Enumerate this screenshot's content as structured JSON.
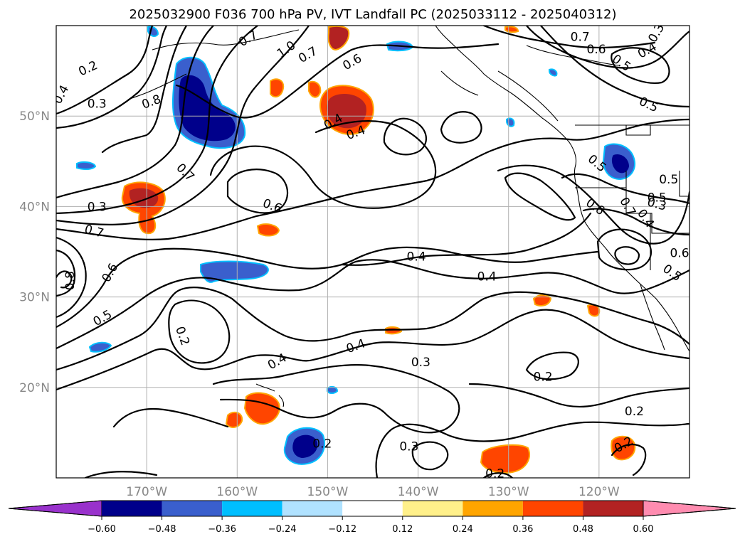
{
  "chart_data": {
    "type": "map-contour",
    "title": "2025032900 F036 700 hPa PV, IVT Landfall PC (2025033112 - 2025040312)",
    "lon_range": [
      -180,
      -110
    ],
    "lat_range": [
      10,
      60
    ],
    "lon_ticks": [
      "170°W",
      "160°W",
      "150°W",
      "140°W",
      "130°W",
      "120°W"
    ],
    "lat_ticks": [
      "50°N",
      "40°N",
      "30°N",
      "20°N"
    ],
    "grid": true,
    "colorbar": {
      "orientation": "horizontal",
      "extend": "both",
      "ticks": [
        "−0.60",
        "−0.48",
        "−0.36",
        "−0.24",
        "−0.12",
        "0.12",
        "0.24",
        "0.36",
        "0.48",
        "0.60"
      ],
      "colors": [
        "#9932cc",
        "#00008b",
        "#3a5fcd",
        "#00bfff",
        "#b0e2ff",
        "#ffffff",
        "#fff08a",
        "#ffa500",
        "#ff4500",
        "#b22222",
        "#ff8cb0"
      ]
    },
    "contour_labels": [
      {
        "text": "0.2",
        "lon": -176.5,
        "lat": 55.3,
        "rot": -25
      },
      {
        "text": "0.3",
        "lon": -175.5,
        "lat": 51.4,
        "rot": 0
      },
      {
        "text": "0.4",
        "lon": -179.5,
        "lat": 52.4,
        "rot": -62
      },
      {
        "text": "0.8",
        "lon": -169.5,
        "lat": 51.6,
        "rot": -20
      },
      {
        "text": "0.7",
        "lon": -158.8,
        "lat": 58.6,
        "rot": -30
      },
      {
        "text": "1.0",
        "lon": -154.6,
        "lat": 57.4,
        "rot": -35
      },
      {
        "text": "0.7",
        "lon": -152.2,
        "lat": 56.8,
        "rot": -30
      },
      {
        "text": "0.6",
        "lon": -147.3,
        "lat": 56.0,
        "rot": -30
      },
      {
        "text": "0.4",
        "lon": -149.4,
        "lat": 49.4,
        "rot": -30
      },
      {
        "text": "0.4",
        "lon": -146.9,
        "lat": 48.2,
        "rot": -20
      },
      {
        "text": "0.7",
        "lon": -165.7,
        "lat": 43.8,
        "rot": 45
      },
      {
        "text": "0.6",
        "lon": -156.1,
        "lat": 40.1,
        "rot": 20
      },
      {
        "text": "0.7",
        "lon": -122.1,
        "lat": 58.8,
        "rot": 0
      },
      {
        "text": "0.6",
        "lon": -120.3,
        "lat": 57.4,
        "rot": 0
      },
      {
        "text": "0.5",
        "lon": -117.5,
        "lat": 55.9,
        "rot": 35
      },
      {
        "text": "0.4",
        "lon": -114.7,
        "lat": 57.3,
        "rot": -30
      },
      {
        "text": "0.3",
        "lon": -113.7,
        "lat": 59.2,
        "rot": -60
      },
      {
        "text": "0.5",
        "lon": -114.5,
        "lat": 51.3,
        "rot": 25
      },
      {
        "text": "0.5",
        "lon": -120.2,
        "lat": 44.8,
        "rot": 40
      },
      {
        "text": "0.5",
        "lon": -112.3,
        "lat": 43.0,
        "rot": 0
      },
      {
        "text": "0.3",
        "lon": -113.6,
        "lat": 40.3,
        "rot": 15
      },
      {
        "text": "0.6",
        "lon": -120.4,
        "lat": 40.0,
        "rot": 35
      },
      {
        "text": "0.7",
        "lon": -116.8,
        "lat": 40.0,
        "rot": 60
      },
      {
        "text": "0.4",
        "lon": -114.8,
        "lat": 38.7,
        "rot": 55
      },
      {
        "text": "0.6",
        "lon": -111.1,
        "lat": 34.9,
        "rot": 0
      },
      {
        "text": "0.5",
        "lon": -111.9,
        "lat": 32.7,
        "rot": 35
      },
      {
        "text": "0.4",
        "lon": -140.2,
        "lat": 34.5,
        "rot": 0
      },
      {
        "text": "0.4",
        "lon": -132.4,
        "lat": 32.3,
        "rot": 0
      },
      {
        "text": "0.7",
        "lon": -175.8,
        "lat": 37.3,
        "rot": 15
      },
      {
        "text": "0.6",
        "lon": -174.1,
        "lat": 32.7,
        "rot": -60
      },
      {
        "text": "0.8",
        "lon": -178.5,
        "lat": 31.8,
        "rot": -90
      },
      {
        "text": "0.5",
        "lon": -174.9,
        "lat": 27.7,
        "rot": -30
      },
      {
        "text": "0.2",
        "lon": -166.0,
        "lat": 25.7,
        "rot": 70
      },
      {
        "text": "0.4",
        "lon": -155.6,
        "lat": 22.9,
        "rot": -30
      },
      {
        "text": "0.4",
        "lon": -146.9,
        "lat": 24.6,
        "rot": -20
      },
      {
        "text": "0.3",
        "lon": -139.7,
        "lat": 22.8,
        "rot": 0
      },
      {
        "text": "0.2",
        "lon": -126.2,
        "lat": 21.2,
        "rot": 0
      },
      {
        "text": "0.2",
        "lon": -116.1,
        "lat": 17.4,
        "rot": 0
      },
      {
        "text": "0.2",
        "lon": -117.3,
        "lat": 13.7,
        "rot": -30
      },
      {
        "text": "0.3",
        "lon": -141.0,
        "lat": 13.5,
        "rot": 0
      },
      {
        "text": "0.2",
        "lon": -150.6,
        "lat": 13.8,
        "rot": 0
      },
      {
        "text": "0.2",
        "lon": -131.5,
        "lat": 10.5,
        "rot": 0
      },
      {
        "text": "0.3",
        "lon": -175.5,
        "lat": 40.0,
        "rot": 0
      },
      {
        "text": "0.5",
        "lon": -113.6,
        "lat": 41.0,
        "rot": 0
      }
    ],
    "shaded_regions_pc": [
      {
        "lon": -164.8,
        "lat": 52.0,
        "value": -0.6
      },
      {
        "lon": -150.0,
        "lat": 49.9,
        "value": 0.5
      },
      {
        "lon": -169.0,
        "lat": 40.6,
        "value": 0.4
      },
      {
        "lon": -160.2,
        "lat": 32.0,
        "value": -0.3
      },
      {
        "lon": -157.4,
        "lat": 17.9,
        "value": 0.4
      },
      {
        "lon": -150.6,
        "lat": 13.7,
        "value": -0.5
      },
      {
        "lon": -129.1,
        "lat": 12.0,
        "value": 0.4
      },
      {
        "lon": -115.6,
        "lat": 13.7,
        "value": 0.5
      },
      {
        "lon": -115.0,
        "lat": 45.1,
        "value": -0.4
      },
      {
        "lon": -151.7,
        "lat": 60.0,
        "value": 0.5
      }
    ]
  }
}
